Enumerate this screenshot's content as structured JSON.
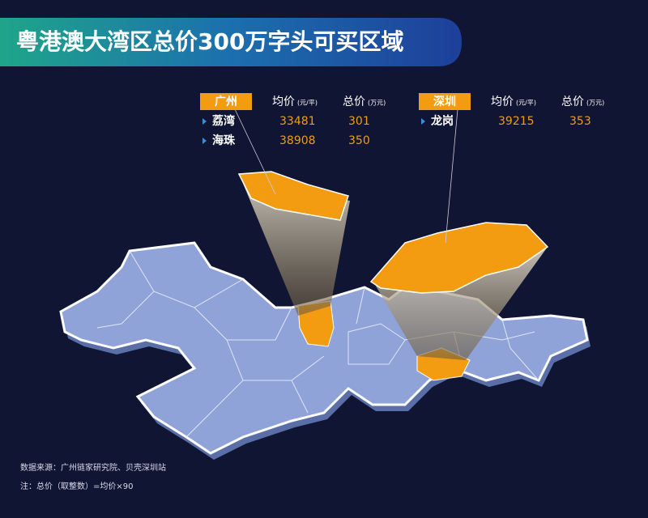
{
  "title": "粤港澳大湾区总价300万字头可买区域",
  "tables": [
    {
      "city": "广州",
      "headers": [
        {
          "name": "均价",
          "unit": "(元/平)"
        },
        {
          "name": "总价",
          "unit": "(万元)"
        }
      ],
      "rows": [
        [
          "荔湾",
          33481,
          301
        ],
        [
          "海珠",
          38908,
          350
        ]
      ]
    },
    {
      "city": "深圳",
      "headers": [
        {
          "name": "均价",
          "unit": "(元/平)"
        },
        {
          "name": "总价",
          "unit": "(万元)"
        }
      ],
      "rows": [
        [
          "龙岗",
          39215,
          353
        ]
      ]
    }
  ],
  "notes": [
    "数据来源：广州链家研究院、贝壳深圳站",
    "注：总价（取整数）=均价×90"
  ]
}
